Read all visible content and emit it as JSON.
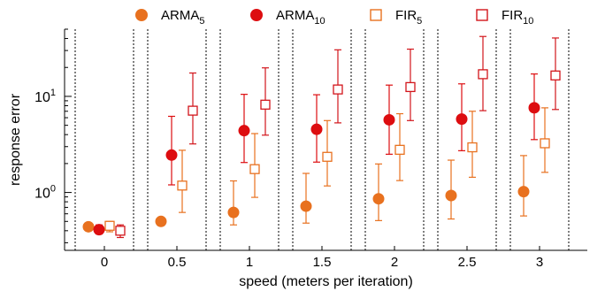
{
  "colors": {
    "arma5": "#e8711f",
    "arma10": "#dd0d10",
    "fir5": "#e8711f",
    "fir10": "#d2151b",
    "axis": "#000000",
    "separator": "#000000"
  },
  "chart_data": {
    "type": "scatter",
    "xlabel": "speed (meters per iteration)",
    "ylabel": "response error",
    "y_scale": "log",
    "ylim": [
      0.25,
      50
    ],
    "categories": [
      "0",
      "0.5",
      "1",
      "1.5",
      "2",
      "2.5",
      "3"
    ],
    "y_ticks": [
      {
        "value": 1,
        "base": "10",
        "exp": "0"
      },
      {
        "value": 10,
        "base": "10",
        "exp": "1"
      }
    ],
    "legend": {
      "placement": "top",
      "entries": [
        {
          "key": "ARMA5",
          "base": "ARMA",
          "sub": "5",
          "marker": "filled-circle"
        },
        {
          "key": "ARMA10",
          "base": "ARMA",
          "sub": "10",
          "marker": "filled-circle"
        },
        {
          "key": "FIR5",
          "base": "FIR",
          "sub": "5",
          "marker": "open-square"
        },
        {
          "key": "FIR10",
          "base": "FIR",
          "sub": "10",
          "marker": "open-square"
        }
      ]
    },
    "series": [
      {
        "key": "ARMA5",
        "name": "ARMA5",
        "marker": "filled-circle",
        "values": [
          0.44,
          0.5,
          0.62,
          0.72,
          0.86,
          0.93,
          1.02
        ],
        "low": [
          0.42,
          0.46,
          0.46,
          0.48,
          0.51,
          0.53,
          0.57
        ],
        "high": [
          0.46,
          0.53,
          1.32,
          1.58,
          1.98,
          2.17,
          2.42
        ]
      },
      {
        "key": "ARMA10",
        "name": "ARMA10",
        "marker": "filled-circle",
        "values": [
          0.41,
          2.45,
          4.4,
          4.55,
          5.7,
          5.8,
          7.6
        ],
        "low": [
          0.37,
          1.2,
          2.05,
          2.07,
          2.5,
          2.72,
          3.55
        ],
        "high": [
          0.46,
          6.2,
          10.5,
          10.4,
          13.1,
          13.5,
          17.1
        ]
      },
      {
        "key": "FIR5",
        "name": "FIR5",
        "marker": "open-square",
        "values": [
          0.45,
          1.18,
          1.75,
          2.35,
          2.78,
          2.95,
          3.25
        ],
        "low": [
          0.39,
          0.62,
          0.89,
          1.17,
          1.33,
          1.44,
          1.62
        ],
        "high": [
          0.5,
          2.75,
          4.1,
          5.6,
          6.6,
          7.0,
          7.6
        ]
      },
      {
        "key": "FIR10",
        "name": "FIR10",
        "marker": "open-square",
        "values": [
          0.4,
          7.1,
          8.2,
          11.8,
          12.5,
          17.0,
          16.5
        ],
        "low": [
          0.34,
          3.2,
          3.95,
          5.3,
          5.6,
          7.1,
          7.3
        ],
        "high": [
          0.46,
          17.5,
          19.8,
          30.5,
          31.0,
          42.0,
          40.5
        ]
      }
    ]
  }
}
